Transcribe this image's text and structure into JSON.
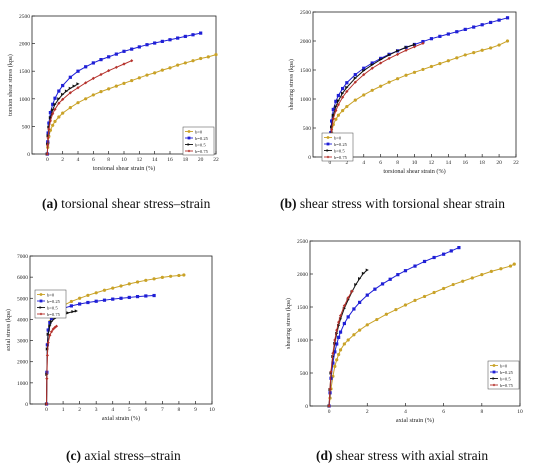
{
  "figure": {
    "captions": [
      {
        "letter": "(a)",
        "text": " torsional shear stress–strain"
      },
      {
        "letter": "(b)",
        "text": " shear stress with torsional shear strain"
      },
      {
        "letter": "(c)",
        "text": " axial stress–strain"
      },
      {
        "letter": "(d)",
        "text": " shear stress with axial strain"
      }
    ]
  },
  "legend_labels": [
    "b=0",
    "b=0.25",
    "b=0.5",
    "b=0.75"
  ],
  "series_colors": [
    "#c9a227",
    "#1f1fd6",
    "#111111",
    "#b5312b"
  ],
  "chart_data": [
    {
      "type": "line",
      "title": "",
      "xlabel": "torsional shear strain (%)",
      "ylabel": "torsion shear stress (kpa)",
      "xlim": [
        -2,
        22
      ],
      "ylim": [
        0,
        2500
      ],
      "xticks": [
        0,
        2,
        4,
        6,
        8,
        10,
        12,
        14,
        16,
        18,
        20,
        22
      ],
      "yticks": [
        0,
        500,
        1000,
        1500,
        2000,
        2500
      ],
      "legend_position": "bottom-right",
      "series": [
        {
          "name": "b=0",
          "x": [
            0,
            0.05,
            0.1,
            0.2,
            0.4,
            0.7,
            1,
            1.5,
            2,
            3,
            4,
            5,
            6,
            7,
            8,
            9,
            10,
            11,
            12,
            13,
            14,
            15,
            16,
            17,
            18,
            19,
            20,
            21,
            22
          ],
          "y": [
            0,
            120,
            200,
            320,
            430,
            520,
            590,
            670,
            740,
            840,
            930,
            1000,
            1070,
            1130,
            1180,
            1230,
            1280,
            1330,
            1380,
            1430,
            1470,
            1520,
            1560,
            1610,
            1650,
            1690,
            1730,
            1760,
            1800
          ]
        },
        {
          "name": "b=0.25",
          "x": [
            0,
            0.05,
            0.1,
            0.2,
            0.4,
            0.7,
            1,
            1.5,
            2,
            3,
            4,
            5,
            6,
            7,
            8,
            9,
            10,
            11,
            12,
            13,
            14,
            15,
            16,
            17,
            18,
            19,
            20
          ],
          "y": [
            0,
            220,
            380,
            560,
            750,
            900,
            1010,
            1140,
            1240,
            1390,
            1500,
            1580,
            1650,
            1710,
            1760,
            1810,
            1860,
            1900,
            1940,
            1980,
            2010,
            2040,
            2070,
            2100,
            2130,
            2160,
            2190
          ]
        },
        {
          "name": "b=0.5",
          "x": [
            0,
            0.05,
            0.1,
            0.2,
            0.4,
            0.7,
            1,
            1.5,
            2,
            2.5,
            3,
            3.5,
            4
          ],
          "y": [
            0,
            180,
            330,
            490,
            660,
            800,
            900,
            1000,
            1080,
            1140,
            1190,
            1230,
            1270
          ]
        },
        {
          "name": "b=0.75",
          "x": [
            0,
            0.05,
            0.1,
            0.2,
            0.4,
            0.7,
            1,
            1.5,
            2,
            3,
            4,
            5,
            6,
            7,
            8,
            9,
            10,
            11
          ],
          "y": [
            0,
            160,
            290,
            450,
            600,
            730,
            810,
            920,
            990,
            1110,
            1200,
            1290,
            1370,
            1440,
            1510,
            1570,
            1630,
            1690
          ]
        }
      ]
    },
    {
      "type": "line",
      "title": "",
      "xlabel": "torsional shear strain (%)",
      "ylabel": "shearing stress (kpa)",
      "xlim": [
        -2,
        22
      ],
      "ylim": [
        0,
        2500
      ],
      "xticks": [
        0,
        2,
        4,
        6,
        8,
        10,
        12,
        14,
        16,
        18,
        20,
        22
      ],
      "yticks": [
        0,
        500,
        1000,
        1500,
        2000,
        2500
      ],
      "legend_position": "bottom-left",
      "series": [
        {
          "name": "b=0",
          "x": [
            0,
            0.05,
            0.1,
            0.2,
            0.4,
            0.7,
            1,
            1.5,
            2,
            3,
            4,
            5,
            6,
            7,
            8,
            9,
            10,
            11,
            12,
            13,
            14,
            15,
            16,
            17,
            18,
            19,
            20,
            21
          ],
          "y": [
            0,
            150,
            280,
            420,
            560,
            650,
            720,
            800,
            870,
            980,
            1070,
            1150,
            1220,
            1290,
            1350,
            1410,
            1460,
            1510,
            1560,
            1610,
            1660,
            1710,
            1760,
            1800,
            1840,
            1880,
            1930,
            2000
          ]
        },
        {
          "name": "b=0.25",
          "x": [
            0,
            0.05,
            0.1,
            0.2,
            0.4,
            0.7,
            1,
            1.5,
            2,
            3,
            4,
            5,
            6,
            7,
            8,
            9,
            10,
            11,
            12,
            13,
            14,
            15,
            16,
            17,
            18,
            19,
            20,
            21
          ],
          "y": [
            0,
            220,
            420,
            620,
            820,
            960,
            1060,
            1180,
            1280,
            1420,
            1530,
            1620,
            1700,
            1770,
            1830,
            1890,
            1940,
            1990,
            2040,
            2080,
            2120,
            2160,
            2200,
            2240,
            2280,
            2320,
            2360,
            2400
          ]
        },
        {
          "name": "b=0.5",
          "x": [
            0,
            0.05,
            0.1,
            0.2,
            0.4,
            0.7,
            1,
            1.5,
            2,
            3,
            4,
            5,
            6,
            7,
            8,
            9,
            10
          ],
          "y": [
            0,
            180,
            350,
            520,
            720,
            870,
            970,
            1100,
            1200,
            1360,
            1490,
            1590,
            1680,
            1760,
            1830,
            1890,
            1940
          ]
        },
        {
          "name": "b=0.75",
          "x": [
            0,
            0.05,
            0.1,
            0.2,
            0.4,
            0.7,
            1,
            1.5,
            2,
            3,
            4,
            5,
            6,
            7,
            8,
            9,
            10,
            11
          ],
          "y": [
            0,
            160,
            310,
            470,
            660,
            800,
            900,
            1030,
            1130,
            1290,
            1420,
            1530,
            1620,
            1700,
            1770,
            1840,
            1900,
            1960
          ]
        }
      ]
    },
    {
      "type": "line",
      "title": "",
      "xlabel": "axial strain (%)",
      "ylabel": "axial stress (kpa)",
      "xlim": [
        -1,
        10
      ],
      "ylim": [
        0,
        7000
      ],
      "xticks": [
        0,
        1,
        2,
        3,
        4,
        5,
        6,
        7,
        8,
        9,
        10
      ],
      "yticks": [
        0,
        1000,
        2000,
        3000,
        4000,
        5000,
        6000,
        7000
      ],
      "legend_position": "center-left",
      "series": [
        {
          "name": "b=0",
          "x": [
            0,
            0.02,
            0.05,
            0.1,
            0.2,
            0.3,
            0.5,
            0.8,
            1,
            1.5,
            2,
            2.5,
            3,
            3.5,
            4,
            4.5,
            5,
            5.5,
            6,
            6.5,
            7,
            7.5,
            8,
            8.3
          ],
          "y": [
            0,
            1500,
            2800,
            3500,
            3900,
            4100,
            4350,
            4550,
            4650,
            4850,
            5000,
            5140,
            5260,
            5380,
            5480,
            5580,
            5680,
            5770,
            5850,
            5920,
            5990,
            6040,
            6080,
            6100
          ]
        },
        {
          "name": "b=0.25",
          "x": [
            0,
            0.02,
            0.05,
            0.1,
            0.2,
            0.3,
            0.5,
            0.8,
            1,
            1.5,
            2,
            2.5,
            3,
            3.5,
            4,
            4.5,
            5,
            5.5,
            6,
            6.5
          ],
          "y": [
            0,
            1500,
            2800,
            3500,
            3850,
            4050,
            4270,
            4430,
            4520,
            4640,
            4730,
            4800,
            4860,
            4910,
            4960,
            5000,
            5040,
            5080,
            5110,
            5130
          ]
        },
        {
          "name": "b=0.5",
          "x": [
            0,
            0.02,
            0.05,
            0.1,
            0.2,
            0.3,
            0.5,
            0.8,
            1,
            1.3,
            1.6,
            1.8
          ],
          "y": [
            0,
            1400,
            2600,
            3300,
            3700,
            3900,
            4050,
            4180,
            4250,
            4310,
            4370,
            4400
          ]
        },
        {
          "name": "b=0.75",
          "x": [
            0,
            0.02,
            0.05,
            0.1,
            0.2,
            0.3,
            0.4,
            0.5,
            0.6
          ],
          "y": [
            0,
            1200,
            2300,
            2900,
            3250,
            3420,
            3540,
            3620,
            3680
          ]
        }
      ]
    },
    {
      "type": "line",
      "title": "",
      "xlabel": "axial strain (%)",
      "ylabel": "shearing stress (kpa)",
      "xlim": [
        -1,
        10
      ],
      "ylim": [
        0,
        2500
      ],
      "xticks": [
        0,
        2,
        4,
        6,
        8,
        10
      ],
      "yticks": [
        0,
        500,
        1000,
        1500,
        2000,
        2500
      ],
      "legend_position": "bottom-right",
      "series": [
        {
          "name": "b=0",
          "x": [
            0,
            0.05,
            0.1,
            0.2,
            0.3,
            0.4,
            0.5,
            0.6,
            0.8,
            1,
            1.3,
            1.6,
            2,
            2.5,
            3,
            3.5,
            4,
            4.5,
            5,
            5.5,
            6,
            6.5,
            7,
            7.5,
            8,
            8.5,
            9,
            9.5,
            9.7
          ],
          "y": [
            0,
            120,
            260,
            450,
            600,
            700,
            780,
            850,
            940,
            1000,
            1080,
            1150,
            1230,
            1310,
            1390,
            1460,
            1530,
            1600,
            1660,
            1720,
            1780,
            1840,
            1890,
            1940,
            1990,
            2040,
            2080,
            2120,
            2150
          ]
        },
        {
          "name": "b=0.25",
          "x": [
            0,
            0.05,
            0.1,
            0.2,
            0.3,
            0.4,
            0.5,
            0.6,
            0.8,
            1,
            1.3,
            1.6,
            2,
            2.4,
            2.8,
            3.2,
            3.6,
            4,
            4.5,
            5,
            5.5,
            6,
            6.4,
            6.8
          ],
          "y": [
            0,
            200,
            420,
            650,
            820,
            940,
            1040,
            1120,
            1250,
            1350,
            1470,
            1570,
            1680,
            1770,
            1850,
            1920,
            1990,
            2050,
            2120,
            2190,
            2250,
            2300,
            2350,
            2400
          ]
        },
        {
          "name": "b=0.5",
          "x": [
            0,
            0.05,
            0.1,
            0.2,
            0.3,
            0.4,
            0.5,
            0.6,
            0.8,
            1,
            1.2,
            1.4,
            1.6,
            1.8,
            2
          ],
          "y": [
            0,
            250,
            500,
            750,
            950,
            1100,
            1220,
            1320,
            1480,
            1610,
            1730,
            1840,
            1930,
            2010,
            2060
          ]
        },
        {
          "name": "b=0.75",
          "x": [
            0,
            0.05,
            0.1,
            0.2,
            0.3,
            0.4,
            0.5,
            0.6,
            0.8,
            1,
            1.2
          ],
          "y": [
            0,
            260,
            520,
            800,
            1000,
            1150,
            1270,
            1370,
            1520,
            1640,
            1740
          ]
        }
      ]
    }
  ]
}
